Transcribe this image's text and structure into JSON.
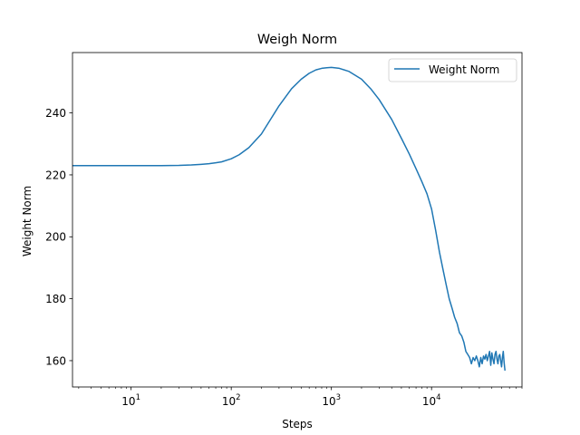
{
  "chart_data": {
    "type": "line",
    "title": "Weigh Norm",
    "xlabel": "Steps",
    "ylabel": "Weight Norm",
    "xscale": "log",
    "xlim": [
      2.6,
      80000
    ],
    "ylim": [
      151.5,
      259.5
    ],
    "x_ticks": [
      {
        "value": 10,
        "base": "10",
        "exp": "1"
      },
      {
        "value": 100,
        "base": "10",
        "exp": "2"
      },
      {
        "value": 1000,
        "base": "10",
        "exp": "3"
      },
      {
        "value": 10000,
        "base": "10",
        "exp": "4"
      }
    ],
    "y_ticks": [
      160,
      180,
      200,
      220,
      240
    ],
    "legend": {
      "position": "top-right",
      "entries": [
        "Weight Norm"
      ]
    },
    "grid": false,
    "line_color": "#1f77b4",
    "series": [
      {
        "name": "Weight Norm",
        "x": [
          2.6,
          5,
          10,
          20,
          30,
          40,
          50,
          60,
          70,
          80,
          100,
          120,
          150,
          200,
          250,
          300,
          400,
          500,
          600,
          700,
          800,
          900,
          1000,
          1200,
          1500,
          2000,
          2500,
          3000,
          4000,
          5000,
          6000,
          7000,
          8000,
          9000,
          10000,
          11000,
          12000,
          13000,
          14000,
          15000,
          16000,
          17000,
          18000,
          19000,
          20000,
          21000,
          22000,
          23000,
          24000,
          25000,
          26000,
          27000,
          28000,
          29000,
          30000,
          31000,
          32000,
          33000,
          34000,
          35000,
          36000,
          37000,
          38000,
          39000,
          40000,
          41000,
          42000,
          43000,
          44000,
          45000,
          46000,
          47000,
          48000,
          49000,
          50000,
          51000,
          52000,
          53000,
          54000
        ],
        "y": [
          223,
          223,
          223,
          223,
          223.05,
          223.2,
          223.4,
          223.6,
          223.9,
          224.2,
          225.2,
          226.5,
          228.8,
          233.2,
          238.2,
          242.3,
          247.8,
          250.9,
          252.8,
          253.9,
          254.4,
          254.6,
          254.7,
          254.4,
          253.4,
          250.9,
          247.6,
          244.3,
          237.9,
          231.8,
          226.7,
          222.0,
          217.8,
          213.9,
          209.0,
          202.0,
          195.0,
          189.5,
          184.5,
          180.0,
          177.0,
          174.0,
          172.0,
          169.0,
          168.0,
          166.0,
          163.0,
          162.0,
          161.0,
          159.0,
          161.0,
          160.0,
          161.5,
          160.0,
          158.0,
          161.0,
          159.0,
          161.5,
          160.5,
          162.0,
          160.0,
          161.5,
          163.0,
          158.5,
          162.5,
          160.5,
          159.0,
          162.0,
          163.0,
          160.5,
          159.0,
          161.5,
          162.0,
          160.0,
          158.0,
          161.0,
          163.0,
          159.5,
          157.0
        ]
      }
    ]
  }
}
